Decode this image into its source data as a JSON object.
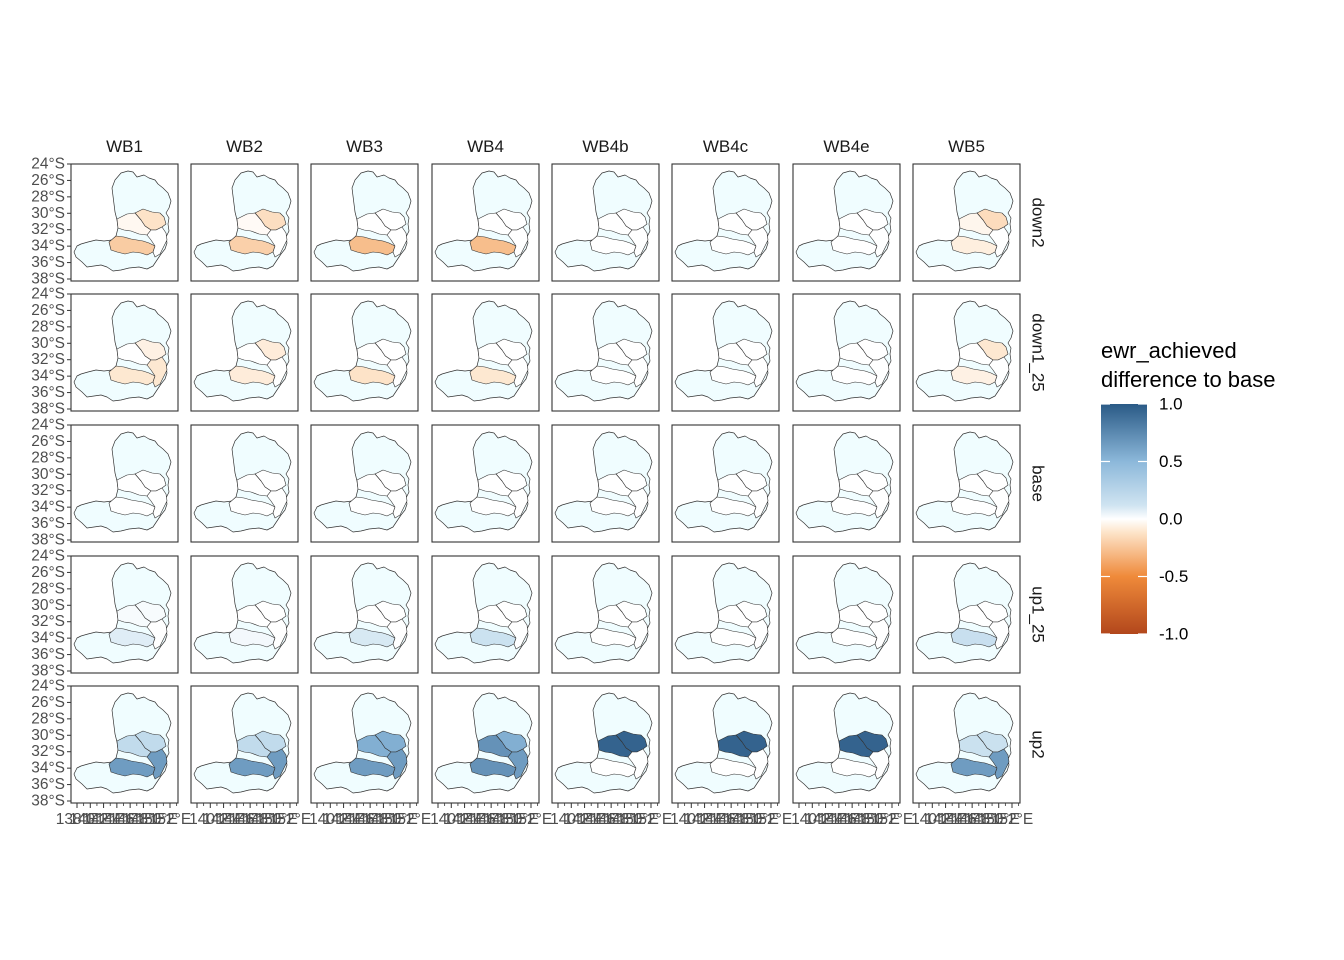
{
  "chart_data": {
    "type": "choropleth_facet_grid",
    "title": "",
    "columns": [
      "WB1",
      "WB2",
      "WB3",
      "WB4",
      "WB4b",
      "WB4c",
      "WB4e",
      "WB5"
    ],
    "rows": [
      "down2",
      "down1_25",
      "base",
      "up1_25",
      "up2"
    ],
    "y_tick_labels": [
      "24°S",
      "26°S",
      "28°S",
      "30°S",
      "32°S",
      "34°S",
      "36°S",
      "38°S"
    ],
    "x_tick_labels_visible": [
      "138°E",
      "140°E",
      "142°E",
      "144°E",
      "146°E",
      "148°E",
      "150°E",
      "152°E"
    ],
    "legend": {
      "title_line1": "ewr_achieved",
      "title_line2": "difference to base",
      "ticks": [
        "1.0",
        "0.5",
        "0.0",
        "-0.5",
        "-1.0"
      ],
      "min": -1.0,
      "max": 1.0,
      "colors": {
        "low": "#b2471c",
        "low_mid": "#ef8a3a",
        "near_zero_low": "#fde3c8",
        "zero": "#ffffff",
        "near_zero_high": "#cfe4f1",
        "high_mid": "#8cb8da",
        "high": "#2a5a86"
      },
      "background_fill": "#f0fdff"
    },
    "regions": [
      "r1",
      "r2",
      "r3",
      "r4"
    ],
    "values": {
      "down2": {
        "WB1": [
          -0.12,
          -0.03,
          -0.22,
          0
        ],
        "WB2": [
          -0.14,
          -0.02,
          -0.2,
          0
        ],
        "WB3": [
          0,
          0,
          -0.28,
          0
        ],
        "WB4": [
          0,
          0,
          -0.28,
          0
        ],
        "WB4b": [
          0,
          0,
          0,
          0
        ],
        "WB4c": [
          0,
          0,
          0,
          0
        ],
        "WB4e": [
          0,
          0,
          0,
          0
        ],
        "WB5": [
          -0.15,
          -0.04,
          -0.07,
          0
        ]
      },
      "down1_25": {
        "WB1": [
          -0.06,
          0,
          -0.1,
          -0.1
        ],
        "WB2": [
          -0.08,
          0,
          -0.08,
          0
        ],
        "WB3": [
          0,
          0,
          -0.12,
          0
        ],
        "WB4": [
          0,
          0,
          -0.1,
          0
        ],
        "WB4b": [
          0,
          0,
          0,
          0
        ],
        "WB4c": [
          0,
          0,
          0,
          0
        ],
        "WB4e": [
          0,
          0,
          0,
          0
        ],
        "WB5": [
          -0.1,
          0,
          -0.06,
          0
        ]
      },
      "base": {
        "WB1": [
          0,
          0,
          0,
          0
        ],
        "WB2": [
          0,
          0,
          0,
          0
        ],
        "WB3": [
          0,
          0,
          0,
          0
        ],
        "WB4": [
          0,
          0,
          0,
          0
        ],
        "WB4b": [
          0,
          0,
          0,
          0
        ],
        "WB4c": [
          0,
          0,
          0,
          0
        ],
        "WB4e": [
          0,
          0,
          0,
          0
        ],
        "WB5": [
          0,
          0,
          0,
          0
        ]
      },
      "up1_25": {
        "WB1": [
          0.02,
          0.02,
          0.08,
          0
        ],
        "WB2": [
          0,
          0,
          0.03,
          0
        ],
        "WB3": [
          0,
          0,
          0.1,
          0
        ],
        "WB4": [
          0,
          0,
          0.14,
          0
        ],
        "WB4b": [
          0,
          0,
          0,
          0
        ],
        "WB4c": [
          0,
          0,
          0,
          0
        ],
        "WB4e": [
          0,
          0,
          0,
          0
        ],
        "WB5": [
          0,
          0,
          0.16,
          0
        ]
      },
      "up2": {
        "WB1": [
          0.2,
          0.2,
          0.65,
          0.65
        ],
        "WB2": [
          0.2,
          0.2,
          0.65,
          0.65
        ],
        "WB3": [
          0.55,
          0.55,
          0.65,
          0.65
        ],
        "WB4": [
          0.55,
          0.7,
          0.7,
          0.65
        ],
        "WB4b": [
          0.95,
          0.95,
          0,
          0
        ],
        "WB4c": [
          0.95,
          0.95,
          0,
          0
        ],
        "WB4e": [
          0.95,
          0.95,
          0,
          0
        ],
        "WB5": [
          0.15,
          0.15,
          0.65,
          0.65
        ]
      }
    }
  }
}
